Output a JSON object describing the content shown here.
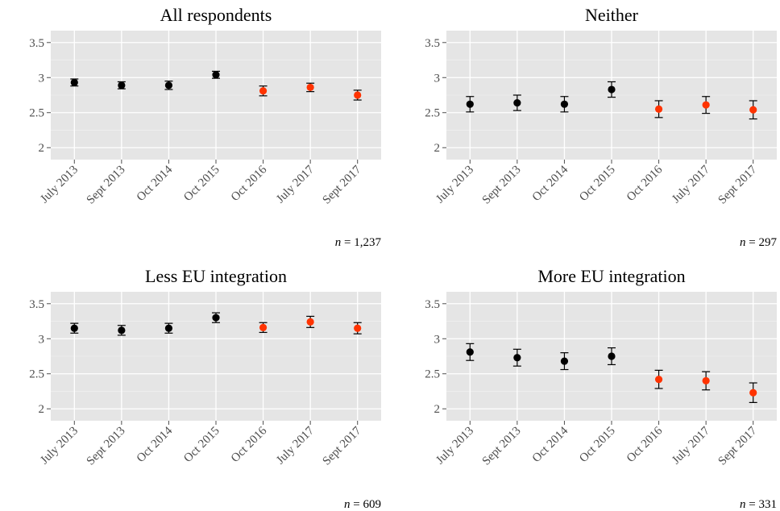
{
  "colors": {
    "panel_bg": "#e5e5e5",
    "grid": "#ffffff",
    "pre": "#000000",
    "post": "#ff3300",
    "tick": "#4d4d4d"
  },
  "chart_data": [
    {
      "type": "scatter",
      "title": "All respondents",
      "n_prefix": "n",
      "n_value": " = 1,237",
      "categories": [
        "July 2013",
        "Sept 2013",
        "Oct 2014",
        "Oct 2015",
        "Oct 2016",
        "July 2017",
        "Sept 2017"
      ],
      "values": [
        2.93,
        2.89,
        2.89,
        3.04,
        2.81,
        2.86,
        2.75
      ],
      "lower": [
        2.88,
        2.84,
        2.83,
        2.99,
        2.74,
        2.8,
        2.68
      ],
      "upper": [
        2.98,
        2.94,
        2.95,
        3.09,
        2.88,
        2.92,
        2.82
      ],
      "point_color": [
        "pre",
        "pre",
        "pre",
        "pre",
        "post",
        "post",
        "post"
      ],
      "yticks": [
        2,
        2.5,
        3,
        3.5
      ],
      "ytick_labels": [
        "2",
        "2.5",
        "3",
        "3.5"
      ],
      "ylim": [
        1.83,
        3.67
      ],
      "grid": true
    },
    {
      "type": "scatter",
      "title": "Neither",
      "n_prefix": "n",
      "n_value": " = 297",
      "categories": [
        "July 2013",
        "Sept 2013",
        "Oct 2014",
        "Oct 2015",
        "Oct 2016",
        "July 2017",
        "Sept 2017"
      ],
      "values": [
        2.62,
        2.64,
        2.62,
        2.83,
        2.55,
        2.61,
        2.54
      ],
      "lower": [
        2.51,
        2.53,
        2.51,
        2.72,
        2.43,
        2.49,
        2.41
      ],
      "upper": [
        2.73,
        2.75,
        2.73,
        2.94,
        2.67,
        2.73,
        2.67
      ],
      "point_color": [
        "pre",
        "pre",
        "pre",
        "pre",
        "post",
        "post",
        "post"
      ],
      "yticks": [
        2,
        2.5,
        3,
        3.5
      ],
      "ytick_labels": [
        "2",
        "2.5",
        "3",
        "3.5"
      ],
      "ylim": [
        1.83,
        3.67
      ],
      "grid": true
    },
    {
      "type": "scatter",
      "title": "Less EU integration",
      "n_prefix": "n",
      "n_value": " = 609",
      "categories": [
        "July 2013",
        "Sept 2013",
        "Oct 2014",
        "Oct 2015",
        "Oct 2016",
        "July 2017",
        "Sept 2017"
      ],
      "values": [
        3.15,
        3.12,
        3.15,
        3.3,
        3.16,
        3.24,
        3.15
      ],
      "lower": [
        3.08,
        3.05,
        3.08,
        3.23,
        3.09,
        3.16,
        3.07
      ],
      "upper": [
        3.22,
        3.19,
        3.22,
        3.37,
        3.23,
        3.32,
        3.23
      ],
      "point_color": [
        "pre",
        "pre",
        "pre",
        "pre",
        "post",
        "post",
        "post"
      ],
      "yticks": [
        2,
        2.5,
        3,
        3.5
      ],
      "ytick_labels": [
        "2",
        "2.5",
        "3",
        "3.5"
      ],
      "ylim": [
        1.83,
        3.67
      ],
      "grid": true
    },
    {
      "type": "scatter",
      "title": "More EU integration",
      "n_prefix": "n",
      "n_value": " = 331",
      "categories": [
        "July 2013",
        "Sept 2013",
        "Oct 2014",
        "Oct 2015",
        "Oct 2016",
        "July 2017",
        "Sept 2017"
      ],
      "values": [
        2.81,
        2.73,
        2.68,
        2.75,
        2.42,
        2.4,
        2.23
      ],
      "lower": [
        2.69,
        2.61,
        2.56,
        2.63,
        2.29,
        2.27,
        2.09
      ],
      "upper": [
        2.93,
        2.85,
        2.8,
        2.87,
        2.55,
        2.53,
        2.37
      ],
      "point_color": [
        "pre",
        "pre",
        "pre",
        "pre",
        "post",
        "post",
        "post"
      ],
      "yticks": [
        2,
        2.5,
        3,
        3.5
      ],
      "ytick_labels": [
        "2",
        "2.5",
        "3",
        "3.5"
      ],
      "ylim": [
        1.83,
        3.67
      ],
      "grid": true
    }
  ]
}
